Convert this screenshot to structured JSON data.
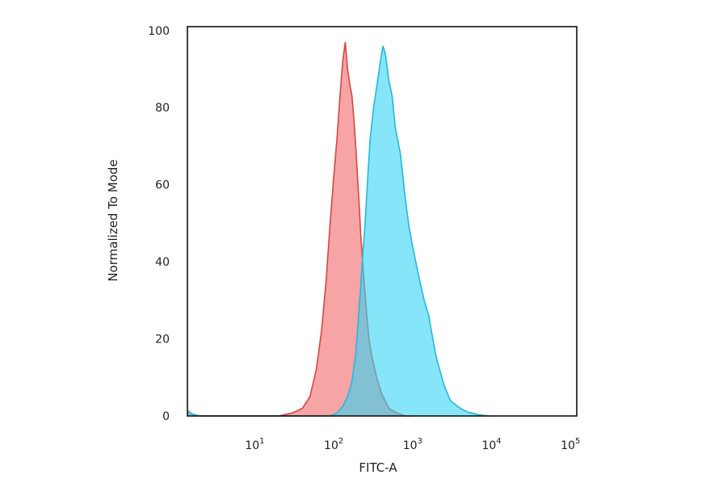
{
  "chart_data": {
    "type": "area",
    "title": "",
    "xlabel": "FITC-A",
    "ylabel": "Normalized To Mode",
    "x_scale": "log",
    "xlim": [
      1.4,
      120000
    ],
    "ylim": [
      0,
      101
    ],
    "grid": false,
    "legend": "none",
    "y_ticks": [
      {
        "value": 0,
        "label": "0"
      },
      {
        "value": 20,
        "label": "20"
      },
      {
        "value": 40,
        "label": "40"
      },
      {
        "value": 60,
        "label": "60"
      },
      {
        "value": 80,
        "label": "80"
      },
      {
        "value": 100,
        "label": "100"
      }
    ],
    "x_ticks": [
      {
        "value": 10,
        "base": "10",
        "exp": "1"
      },
      {
        "value": 100,
        "base": "10",
        "exp": "2"
      },
      {
        "value": 1000,
        "base": "10",
        "exp": "3"
      },
      {
        "value": 10000,
        "base": "10",
        "exp": "4"
      },
      {
        "value": 100000,
        "base": "10",
        "exp": "5"
      }
    ],
    "series": [
      {
        "fill": "#f48a8c",
        "stroke": "#d9463f",
        "points": [
          [
            1.4,
            1.5
          ],
          [
            1.6,
            0.5
          ],
          [
            2,
            0
          ],
          [
            20,
            0
          ],
          [
            30,
            0.8
          ],
          [
            40,
            2
          ],
          [
            50,
            5
          ],
          [
            60,
            12
          ],
          [
            70,
            22
          ],
          [
            80,
            35
          ],
          [
            90,
            50
          ],
          [
            100,
            62
          ],
          [
            110,
            72
          ],
          [
            120,
            83
          ],
          [
            130,
            92
          ],
          [
            140,
            97
          ],
          [
            150,
            90
          ],
          [
            160,
            86
          ],
          [
            170,
            83
          ],
          [
            180,
            77
          ],
          [
            190,
            70
          ],
          [
            200,
            62
          ],
          [
            210,
            55
          ],
          [
            220,
            47
          ],
          [
            240,
            36
          ],
          [
            260,
            27
          ],
          [
            280,
            20
          ],
          [
            300,
            16
          ],
          [
            350,
            10
          ],
          [
            400,
            6
          ],
          [
            500,
            2
          ],
          [
            600,
            1
          ],
          [
            800,
            0
          ],
          [
            1000,
            0
          ]
        ]
      },
      {
        "fill": "#35d4f4",
        "stroke": "#22b9de",
        "points": [
          [
            1.4,
            1.5
          ],
          [
            1.6,
            0.5
          ],
          [
            2,
            0
          ],
          [
            90,
            0
          ],
          [
            110,
            0.8
          ],
          [
            130,
            2.5
          ],
          [
            150,
            5
          ],
          [
            170,
            9
          ],
          [
            190,
            16
          ],
          [
            210,
            28
          ],
          [
            230,
            40
          ],
          [
            250,
            50
          ],
          [
            270,
            62
          ],
          [
            290,
            72
          ],
          [
            320,
            80
          ],
          [
            360,
            87
          ],
          [
            390,
            92
          ],
          [
            420,
            96
          ],
          [
            450,
            94
          ],
          [
            500,
            87
          ],
          [
            550,
            83
          ],
          [
            600,
            75
          ],
          [
            700,
            68
          ],
          [
            800,
            57
          ],
          [
            900,
            49
          ],
          [
            1000,
            44
          ],
          [
            1200,
            36
          ],
          [
            1400,
            30
          ],
          [
            1600,
            26
          ],
          [
            1800,
            20
          ],
          [
            2000,
            15
          ],
          [
            2500,
            8
          ],
          [
            3000,
            4
          ],
          [
            4000,
            2
          ],
          [
            5000,
            1
          ],
          [
            7000,
            0.3
          ],
          [
            9000,
            0
          ],
          [
            10000,
            0
          ]
        ]
      }
    ]
  }
}
